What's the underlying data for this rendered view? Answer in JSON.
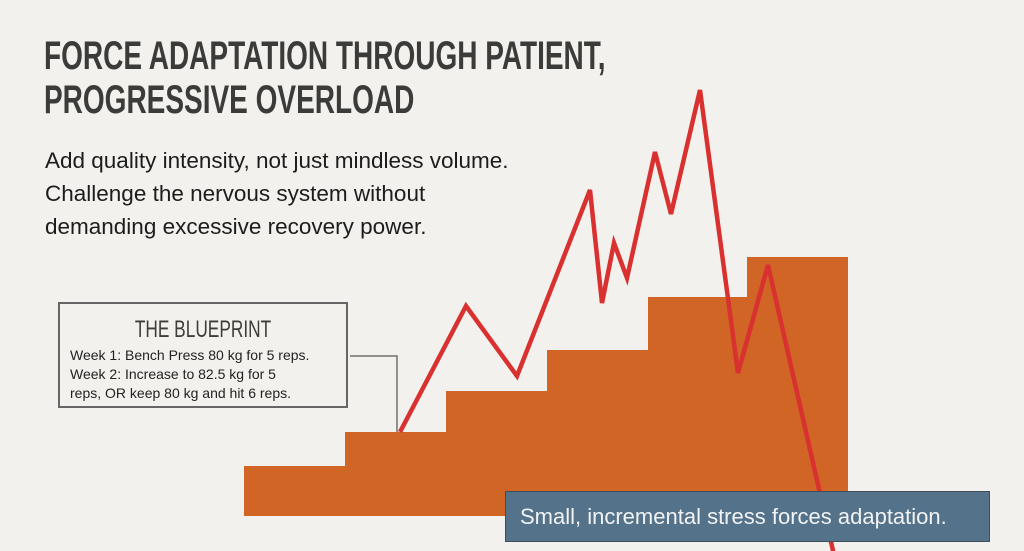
{
  "title": {
    "line1": "FORCE ADAPTATION THROUGH PATIENT,",
    "line2": "PROGRESSIVE OVERLOAD"
  },
  "subtitle": {
    "line1": "Add quality intensity, not just mindless volume.",
    "line2": "Challenge the nervous system without",
    "line3": "demanding excessive recovery power."
  },
  "blueprint": {
    "heading": "THE BLUEPRINT",
    "line1": "Week 1: Bench Press 80 kg for 5 reps.",
    "line2": "Week 2: Increase to 82.5 kg for 5",
    "line3": "reps, OR keep 80 kg and hit 6 reps."
  },
  "callout": "Small, incremental stress forces adaptation.",
  "colors": {
    "background": "#f2f1ed",
    "steps": "#d06525",
    "stress_line": "#d93030",
    "callout": "#54728a"
  },
  "diagram": {
    "step_count": 6,
    "steps_represent": "steady incremental progression",
    "line_represents": "erratic spikes then crash"
  }
}
